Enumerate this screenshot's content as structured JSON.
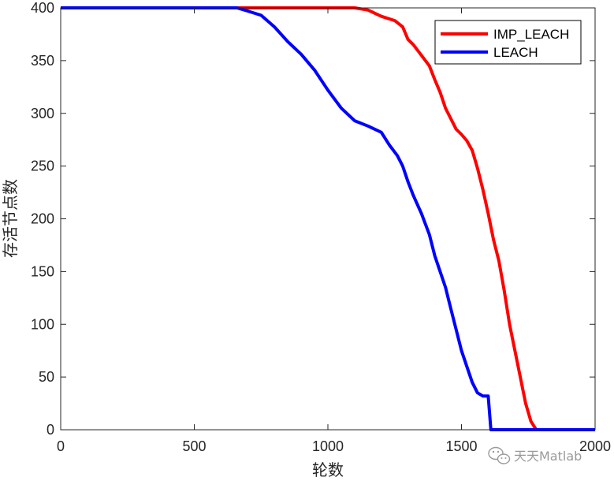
{
  "chart_data": {
    "type": "line",
    "title": "",
    "xlabel": "轮数",
    "ylabel": "存活节点数",
    "xlim": [
      0,
      2000
    ],
    "ylim": [
      0,
      400
    ],
    "xticks": [
      "0",
      "500",
      "1000",
      "1500",
      "2000"
    ],
    "yticks": [
      "0",
      "50",
      "100",
      "150",
      "200",
      "250",
      "300",
      "350",
      "400"
    ],
    "grid": false,
    "legend_position": "top-right",
    "series": [
      {
        "name": "IMP_LEACH",
        "color": "#ff0000",
        "x": [
          0,
          700,
          1100,
          1150,
          1200,
          1250,
          1280,
          1300,
          1320,
          1350,
          1380,
          1400,
          1420,
          1440,
          1460,
          1480,
          1500,
          1520,
          1540,
          1560,
          1580,
          1600,
          1620,
          1640,
          1660,
          1680,
          1700,
          1720,
          1740,
          1760,
          1780,
          1800,
          1820,
          2000
        ],
        "y": [
          400,
          400,
          400,
          398,
          392,
          388,
          382,
          370,
          365,
          355,
          345,
          332,
          320,
          305,
          295,
          285,
          280,
          274,
          265,
          248,
          228,
          205,
          180,
          160,
          132,
          100,
          75,
          50,
          25,
          8,
          0,
          0,
          0,
          0
        ]
      },
      {
        "name": "LEACH",
        "color": "#0000ff",
        "x": [
          0,
          660,
          700,
          750,
          800,
          850,
          900,
          950,
          1000,
          1050,
          1100,
          1150,
          1200,
          1230,
          1260,
          1280,
          1300,
          1320,
          1350,
          1380,
          1400,
          1420,
          1440,
          1460,
          1480,
          1500,
          1520,
          1540,
          1560,
          1580,
          1600,
          1610,
          1620,
          1640,
          2000
        ],
        "y": [
          400,
          400,
          397,
          393,
          382,
          368,
          356,
          341,
          322,
          305,
          293,
          288,
          282,
          270,
          260,
          250,
          235,
          222,
          205,
          185,
          165,
          150,
          135,
          115,
          95,
          75,
          60,
          45,
          35,
          32,
          32,
          0,
          0,
          0,
          0
        ]
      }
    ]
  },
  "watermark": {
    "text": "天天Matlab",
    "icon": "wechat-logo"
  }
}
